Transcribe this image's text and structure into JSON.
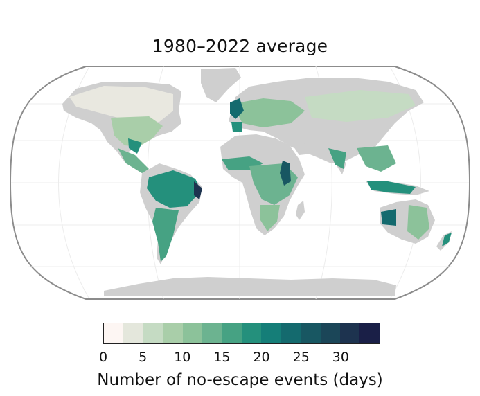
{
  "title": "1980–2022 average",
  "colorbar": {
    "label": "Number of no-escape events (days)",
    "ticks": [
      "0",
      "5",
      "10",
      "15",
      "20",
      "25",
      "30"
    ],
    "tick_values": [
      0,
      5,
      10,
      15,
      20,
      25,
      30
    ],
    "min": 0,
    "max": 35,
    "colors": [
      "#fdf6f3",
      "#e4e7dc",
      "#c5dbc3",
      "#a9cea9",
      "#8cc29a",
      "#6cb390",
      "#46a283",
      "#24907c",
      "#157e78",
      "#146a6e",
      "#185762",
      "#1b4658",
      "#1d334f",
      "#1a1f47"
    ]
  },
  "map": {
    "projection": "Robinson",
    "land_color": "#cfcfcf",
    "ocean_color": "#ffffff",
    "outline_color": "#8c8c8c",
    "graticule_color": "#e9e9e9"
  }
}
